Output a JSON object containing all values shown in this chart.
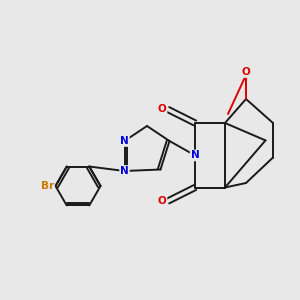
{
  "background_color": "#e8e8e8",
  "bond_color": "#1a1a1a",
  "n_color": "#0000dd",
  "o_color": "#dd0000",
  "br_color": "#cc7700",
  "figsize": [
    3.0,
    3.0
  ],
  "dpi": 100,
  "xlim": [
    -1.0,
    9.0
  ],
  "ylim": [
    0.5,
    9.5
  ]
}
